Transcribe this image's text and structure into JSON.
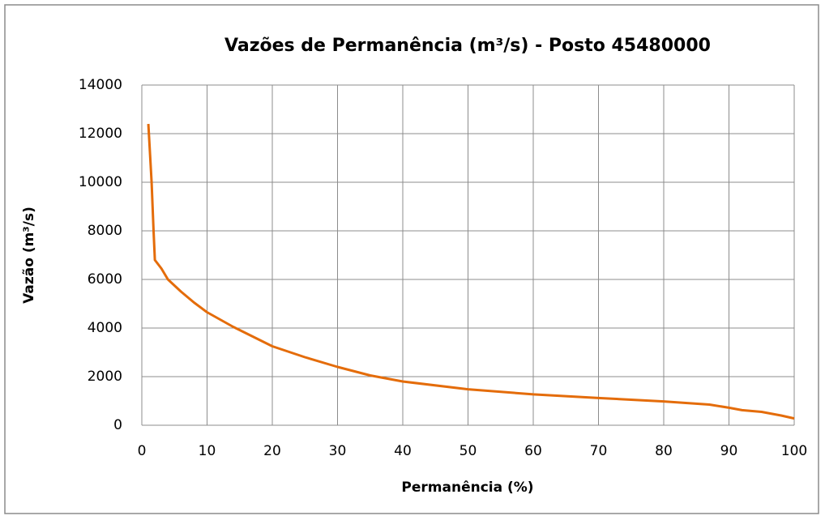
{
  "chart_data": {
    "type": "line",
    "title": "Vazões de Permanência (m³/s) - Posto 45480000",
    "xlabel": "Permanência (%)",
    "ylabel": "Vazão (m³/s)",
    "x": [
      1,
      1.5,
      1.8,
      2,
      3,
      4,
      6,
      8,
      10,
      14,
      20,
      25,
      30,
      35,
      40,
      50,
      60,
      70,
      80,
      87,
      90,
      92,
      95,
      98,
      100
    ],
    "values": [
      12400,
      10000,
      8000,
      6800,
      6450,
      6000,
      5500,
      5050,
      4650,
      4050,
      3250,
      2800,
      2400,
      2050,
      1800,
      1480,
      1270,
      1120,
      980,
      850,
      720,
      620,
      550,
      400,
      280
    ],
    "color": "#e46c0a",
    "xlim": [
      0,
      100
    ],
    "xticks": [
      0,
      10,
      20,
      30,
      40,
      50,
      60,
      70,
      80,
      90,
      100
    ],
    "ylim": [
      0,
      14000
    ],
    "yticks": [
      0,
      2000,
      4000,
      6000,
      8000,
      10000,
      12000,
      14000
    ],
    "grid": true
  }
}
